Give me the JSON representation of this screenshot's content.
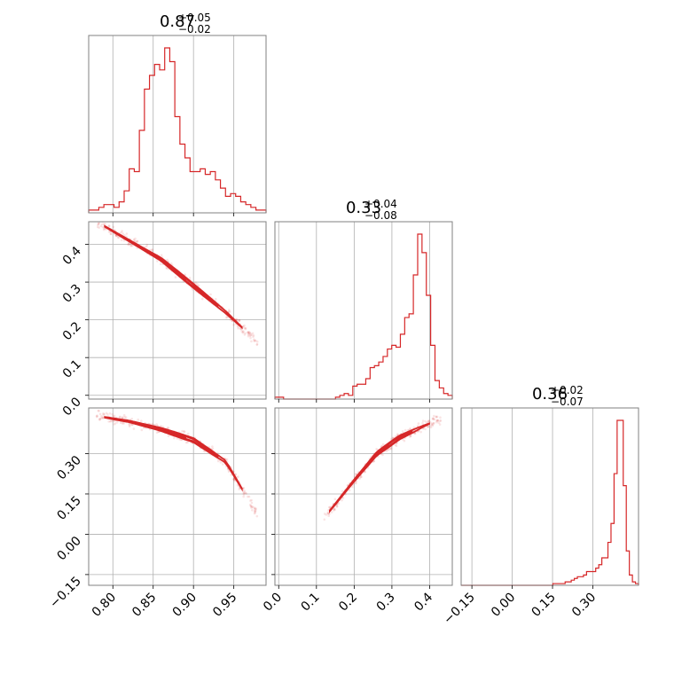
{
  "colors": {
    "accent": "#d62728",
    "grid": "#b0b0b0",
    "frame": "#808080"
  },
  "chart_data": {
    "type": "corner",
    "grid": true,
    "marginals": [
      {
        "title": {
          "value": "0.87",
          "plus": "+0.05",
          "minus": "−0.02"
        },
        "xlim": [
          0.77,
          0.99
        ],
        "bins_edges": [
          0.77,
          0.99
        ],
        "counts": [
          1,
          1,
          2,
          3,
          3,
          2,
          4,
          8,
          16,
          15,
          30,
          45,
          50,
          54,
          52,
          60,
          55,
          35,
          25,
          20,
          15,
          15,
          16,
          14,
          15,
          12,
          9,
          6,
          7,
          6,
          4,
          3,
          2,
          1,
          1
        ],
        "peak": 60
      },
      {
        "title": {
          "value": "0.33",
          "plus": "+0.04",
          "minus": "−0.08"
        },
        "xlim": [
          -0.01,
          0.46
        ],
        "counts": [
          1,
          1,
          0,
          0,
          0,
          0,
          0,
          0,
          0,
          0,
          0,
          0,
          0,
          0,
          1,
          2,
          3,
          2,
          7,
          8,
          8,
          11,
          17,
          18,
          20,
          23,
          27,
          29,
          28,
          35,
          44,
          46,
          67,
          89,
          79,
          56,
          29,
          10,
          6,
          3,
          2
        ],
        "peak": 89
      },
      {
        "title": {
          "value": "0.36",
          "plus": "+0.02",
          "minus": "−0.07"
        },
        "xlim": [
          -0.19,
          0.47
        ],
        "counts": [
          0,
          0,
          0,
          0,
          0,
          0,
          0,
          0,
          0,
          0,
          0,
          0,
          0,
          0,
          0,
          0,
          0,
          0,
          0,
          0,
          0,
          0,
          0,
          0,
          0,
          0,
          0,
          0,
          0,
          0,
          1,
          1,
          1,
          1,
          2,
          2,
          3,
          4,
          5,
          5,
          6,
          8,
          8,
          8,
          10,
          12,
          16,
          16,
          25,
          36,
          65,
          96,
          96,
          58,
          20,
          6,
          2,
          1
        ],
        "peak": 96
      }
    ],
    "axes": [
      {
        "label": "",
        "lim": [
          0.77,
          0.99
        ],
        "ticks": [
          0.8,
          0.85,
          0.9,
          0.95
        ],
        "tick_labels": [
          "0.80",
          "0.85",
          "0.90",
          "0.95"
        ]
      },
      {
        "label": "",
        "lim": [
          -0.01,
          0.46
        ],
        "ticks": [
          0.0,
          0.1,
          0.2,
          0.3,
          0.4
        ],
        "tick_labels": [
          "0.0",
          "0.1",
          "0.2",
          "0.3",
          "0.4"
        ]
      },
      {
        "label": "",
        "lim": [
          -0.19,
          0.47
        ],
        "ticks": [
          -0.15,
          0.0,
          0.15,
          0.3
        ],
        "tick_labels": [
          "−0.15",
          "0.00",
          "0.15",
          "0.30"
        ]
      }
    ],
    "joint_relations": {
      "p1_vs_p0": {
        "x": [
          0.78,
          0.82,
          0.86,
          0.9,
          0.94,
          0.98
        ],
        "y": [
          0.46,
          0.41,
          0.36,
          0.29,
          0.22,
          0.14
        ]
      },
      "p2_vs_p0": {
        "x": [
          0.78,
          0.82,
          0.86,
          0.9,
          0.94,
          0.98
        ],
        "y": [
          0.44,
          0.42,
          0.39,
          0.35,
          0.27,
          0.07
        ]
      },
      "p2_vs_p1": {
        "x": [
          0.12,
          0.2,
          0.26,
          0.32,
          0.38,
          0.43
        ],
        "y": [
          0.06,
          0.2,
          0.3,
          0.36,
          0.4,
          0.43
        ]
      }
    }
  }
}
